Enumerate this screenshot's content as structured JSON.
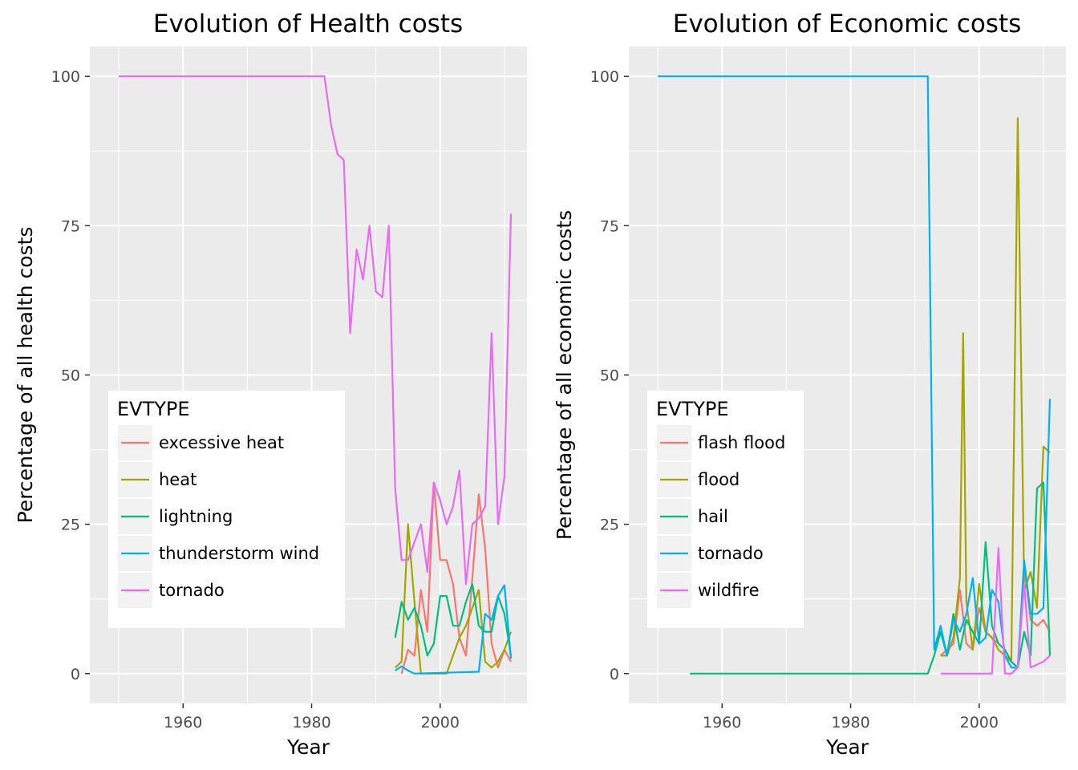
{
  "chart_data": [
    {
      "type": "line",
      "title": "Evolution of Health costs",
      "xlabel": "Year",
      "ylabel": "Percentage of all health costs",
      "xlim": [
        1945.5,
        2013.5
      ],
      "ylim": [
        -5,
        105
      ],
      "xticks": [
        1960,
        1980,
        2000
      ],
      "yticks": [
        0,
        25,
        50,
        75,
        100
      ],
      "grid": true,
      "legend": {
        "title": "EVTYPE",
        "position": "bottom-left"
      },
      "series": [
        {
          "name": "excessive heat",
          "color": "#F8766D",
          "points": [
            [
              1994,
              0
            ],
            [
              1995,
              4
            ],
            [
              1996,
              3
            ],
            [
              1997,
              14
            ],
            [
              1998,
              7
            ],
            [
              1999,
              32
            ],
            [
              2000,
              19
            ],
            [
              2001,
              19
            ],
            [
              2002,
              15
            ],
            [
              2003,
              6
            ],
            [
              2004,
              3
            ],
            [
              2005,
              16
            ],
            [
              2006,
              30
            ],
            [
              2007,
              21
            ],
            [
              2008,
              5
            ],
            [
              2009,
              1
            ],
            [
              2010,
              4
            ],
            [
              2011,
              2
            ]
          ]
        },
        {
          "name": "heat",
          "color": "#A3A500",
          "points": [
            [
              1993,
              1
            ],
            [
              1994,
              2
            ],
            [
              1995,
              25
            ],
            [
              1996,
              12
            ],
            [
              1997,
              0
            ],
            [
              2001,
              0
            ],
            [
              2002,
              3
            ],
            [
              2003,
              6
            ],
            [
              2004,
              8
            ],
            [
              2005,
              11
            ],
            [
              2006,
              14
            ],
            [
              2007,
              2
            ],
            [
              2008,
              1
            ],
            [
              2009,
              2
            ],
            [
              2010,
              4
            ],
            [
              2011,
              7
            ]
          ]
        },
        {
          "name": "lightning",
          "color": "#00BF7D",
          "points": [
            [
              1993,
              6
            ],
            [
              1994,
              12
            ],
            [
              1995,
              9
            ],
            [
              1996,
              11
            ],
            [
              1997,
              8
            ],
            [
              1998,
              3
            ],
            [
              1999,
              5
            ],
            [
              2000,
              13
            ],
            [
              2001,
              13
            ],
            [
              2002,
              8
            ],
            [
              2003,
              8
            ],
            [
              2004,
              12
            ],
            [
              2005,
              15
            ],
            [
              2006,
              8
            ],
            [
              2007,
              7
            ],
            [
              2008,
              7
            ],
            [
              2009,
              13
            ],
            [
              2010,
              10
            ],
            [
              2011,
              3
            ]
          ]
        },
        {
          "name": "thunderstorm wind",
          "color": "#00B0F6",
          "points": [
            [
              1993,
              0.5
            ],
            [
              1994,
              1.2
            ],
            [
              1995,
              0.5
            ],
            [
              1996,
              0
            ],
            [
              2006,
              0.3
            ],
            [
              2007,
              10
            ],
            [
              2008,
              9
            ],
            [
              2009,
              13
            ],
            [
              2010,
              14.8
            ],
            [
              2011,
              2.5
            ]
          ]
        },
        {
          "name": "tornado",
          "color": "#E76BF3",
          "points": [
            [
              1950,
              100
            ],
            [
              1982,
              100
            ],
            [
              1983,
              92
            ],
            [
              1984,
              87
            ],
            [
              1985,
              86
            ],
            [
              1986,
              57
            ],
            [
              1987,
              71
            ],
            [
              1988,
              66
            ],
            [
              1989,
              75
            ],
            [
              1990,
              64
            ],
            [
              1991,
              63
            ],
            [
              1992,
              75
            ],
            [
              1993,
              31
            ],
            [
              1994,
              19
            ],
            [
              1995,
              19
            ],
            [
              1996,
              22
            ],
            [
              1997,
              25
            ],
            [
              1998,
              17
            ],
            [
              1999,
              32
            ],
            [
              2000,
              29
            ],
            [
              2001,
              25
            ],
            [
              2002,
              28
            ],
            [
              2003,
              34
            ],
            [
              2004,
              15
            ],
            [
              2005,
              25
            ],
            [
              2006,
              26
            ],
            [
              2007,
              28
            ],
            [
              2008,
              57
            ],
            [
              2009,
              25
            ],
            [
              2010,
              33
            ],
            [
              2011,
              77
            ]
          ]
        }
      ]
    },
    {
      "type": "line",
      "title": "Evolution of Economic costs",
      "xlabel": "Year",
      "ylabel": "Percentage of all economic costs",
      "xlim": [
        1945.5,
        2013.5
      ],
      "ylim": [
        -5,
        105
      ],
      "xticks": [
        1960,
        1980,
        2000
      ],
      "yticks": [
        0,
        25,
        50,
        75,
        100
      ],
      "grid": true,
      "legend": {
        "title": "EVTYPE",
        "position": "bottom-left"
      },
      "series": [
        {
          "name": "flash flood",
          "color": "#F8766D",
          "points": [
            [
              1994,
              3
            ],
            [
              1995,
              4
            ],
            [
              1996,
              5
            ],
            [
              1997,
              14
            ],
            [
              1998,
              5
            ],
            [
              1999,
              4
            ],
            [
              2000,
              11
            ],
            [
              2001,
              7
            ],
            [
              2002,
              6
            ],
            [
              2003,
              5
            ],
            [
              2004,
              4
            ],
            [
              2005,
              2
            ],
            [
              2006,
              1
            ],
            [
              2007,
              18
            ],
            [
              2008,
              9
            ],
            [
              2009,
              8
            ],
            [
              2010,
              9
            ],
            [
              2011,
              7
            ]
          ]
        },
        {
          "name": "flood",
          "color": "#A3A500",
          "points": [
            [
              1994,
              3
            ],
            [
              1995,
              3
            ],
            [
              1996,
              6
            ],
            [
              1997,
              16
            ],
            [
              1997.5,
              57
            ],
            [
              1998,
              12
            ],
            [
              1999,
              4
            ],
            [
              2000,
              15
            ],
            [
              2001,
              7
            ],
            [
              2002,
              6
            ],
            [
              2003,
              4
            ],
            [
              2004,
              3
            ],
            [
              2005,
              2
            ],
            [
              2006,
              93
            ],
            [
              2007,
              14
            ],
            [
              2008,
              17
            ],
            [
              2009,
              11
            ],
            [
              2010,
              38
            ],
            [
              2011,
              37
            ]
          ]
        },
        {
          "name": "hail",
          "color": "#00BF7D",
          "points": [
            [
              1955,
              0
            ],
            [
              1992,
              0
            ],
            [
              1993,
              3
            ],
            [
              1994,
              7
            ],
            [
              1995,
              3
            ],
            [
              1996,
              10
            ],
            [
              1997,
              4
            ],
            [
              1998,
              9
            ],
            [
              1999,
              7
            ],
            [
              2000,
              5
            ],
            [
              2001,
              22
            ],
            [
              2002,
              8
            ],
            [
              2003,
              5
            ],
            [
              2004,
              4
            ],
            [
              2005,
              2
            ],
            [
              2006,
              1
            ],
            [
              2007,
              7
            ],
            [
              2008,
              3
            ],
            [
              2009,
              31
            ],
            [
              2010,
              32
            ],
            [
              2011,
              3
            ]
          ]
        },
        {
          "name": "tornado",
          "color": "#00B0F6",
          "points": [
            [
              1950,
              100
            ],
            [
              1992,
              100
            ],
            [
              1993,
              4
            ],
            [
              1994,
              8
            ],
            [
              1995,
              3
            ],
            [
              1996,
              9
            ],
            [
              1997,
              7
            ],
            [
              1998,
              10
            ],
            [
              1999,
              16
            ],
            [
              2000,
              5
            ],
            [
              2001,
              6
            ],
            [
              2002,
              14
            ],
            [
              2003,
              12
            ],
            [
              2004,
              3
            ],
            [
              2005,
              1
            ],
            [
              2006,
              1
            ],
            [
              2007,
              19
            ],
            [
              2008,
              10
            ],
            [
              2009,
              10
            ],
            [
              2010,
              11
            ],
            [
              2011,
              46
            ]
          ]
        },
        {
          "name": "wildfire",
          "color": "#E76BF3",
          "points": [
            [
              1994,
              0
            ],
            [
              2002,
              0
            ],
            [
              2003,
              21
            ],
            [
              2004,
              0
            ],
            [
              2005,
              0
            ],
            [
              2006,
              1
            ],
            [
              2007,
              15
            ],
            [
              2008,
              1
            ],
            [
              2009,
              1.5
            ],
            [
              2010,
              2
            ],
            [
              2011,
              3
            ]
          ]
        }
      ]
    }
  ]
}
